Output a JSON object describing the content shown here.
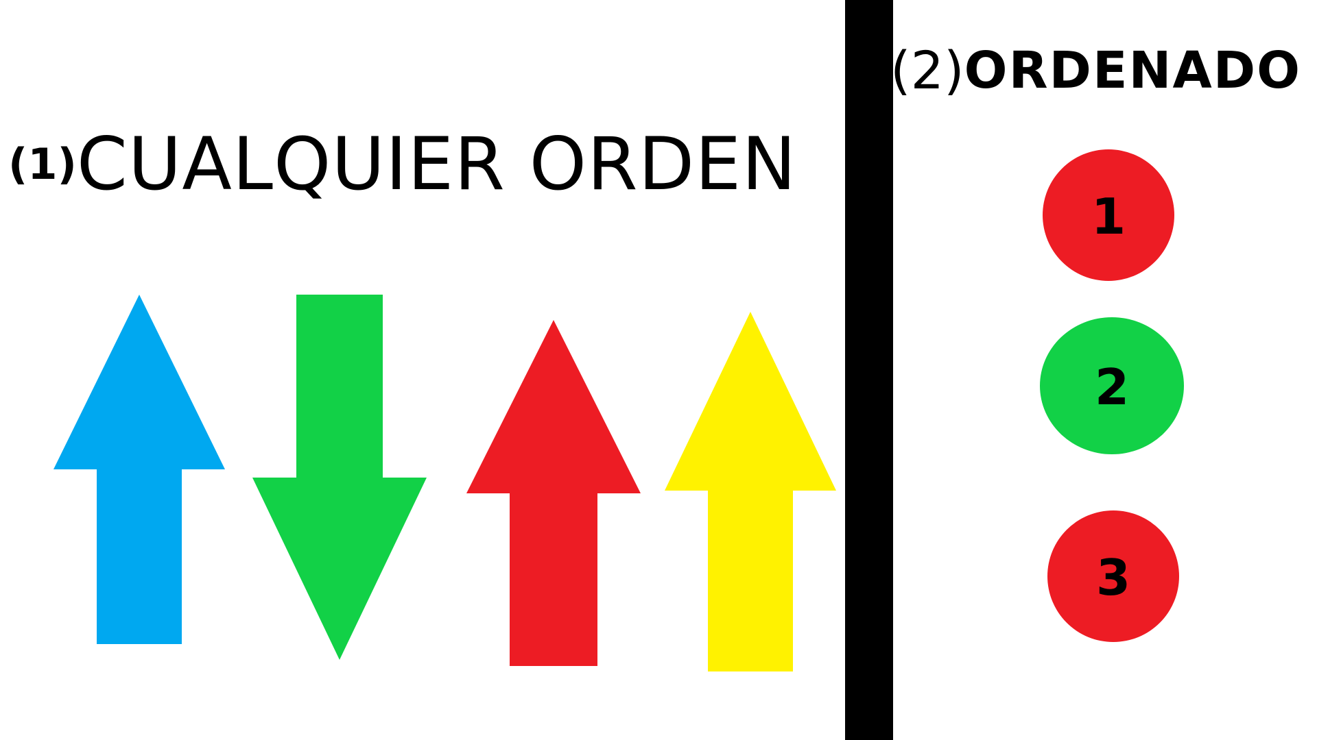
{
  "left_panel": {
    "title_number": "(1)",
    "title_text": "CUALQUIER ORDEN",
    "arrows": [
      {
        "direction": "up",
        "color": "#00a8f0"
      },
      {
        "direction": "down",
        "color": "#12d147"
      },
      {
        "direction": "up",
        "color": "#ed1c24"
      },
      {
        "direction": "up",
        "color": "#fff200"
      }
    ]
  },
  "right_panel": {
    "title_number": "(2)",
    "title_text": "ORDENADO",
    "circles": [
      {
        "label": "1",
        "color": "#ed1c24"
      },
      {
        "label": "2",
        "color": "#12d147"
      },
      {
        "label": "3",
        "color": "#ed1c24"
      }
    ]
  },
  "divider_color": "#000000"
}
